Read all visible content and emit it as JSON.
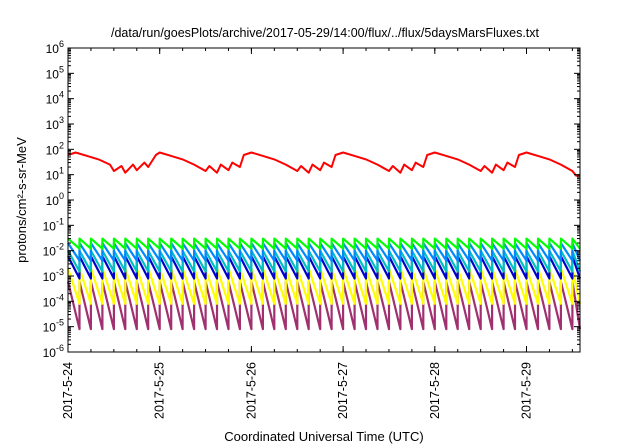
{
  "chart_data": {
    "type": "line",
    "title": "/data/run/goesPlots/archive/2017-05-29/14:00/flux/../flux/5daysMarsFluxes.txt",
    "xlabel": "Coordinated Universal Time (UTC)",
    "ylabel": "protons/cm²-s-sr-MeV",
    "y_scale": "log",
    "ylim": [
      1e-06,
      1000000.0
    ],
    "xlim": [
      "2017-05-24 00:00",
      "2017-05-29 14:00"
    ],
    "x_ticks": [
      "2017-5-24",
      "2017-5-25",
      "2017-5-26",
      "2017-5-27",
      "2017-5-28",
      "2017-5-29"
    ],
    "y_ticks": [
      {
        "base": "10",
        "exp": "-6"
      },
      {
        "base": "10",
        "exp": "-5"
      },
      {
        "base": "10",
        "exp": "-4"
      },
      {
        "base": "10",
        "exp": "-3"
      },
      {
        "base": "10",
        "exp": "-2"
      },
      {
        "base": "10",
        "exp": "-1"
      },
      {
        "base": "10",
        "exp": "0"
      },
      {
        "base": "10",
        "exp": "1"
      },
      {
        "base": "10",
        "exp": "2"
      },
      {
        "base": "10",
        "exp": "3"
      },
      {
        "base": "10",
        "exp": "4"
      },
      {
        "base": "10",
        "exp": "5"
      },
      {
        "base": "10",
        "exp": "6"
      }
    ],
    "grid": false,
    "legend": "none",
    "series": [
      {
        "color": "#ff0000",
        "x": [
          "2017-05-24 00:00",
          "2017-05-24 02:00",
          "2017-05-24 05:00",
          "2017-05-24 08:00",
          "2017-05-24 11:00",
          "2017-05-24 12:00",
          "2017-05-24 14:00",
          "2017-05-24 15:00",
          "2017-05-24 17:00",
          "2017-05-24 18:00",
          "2017-05-24 20:00",
          "2017-05-24 21:00",
          "2017-05-24 23:00",
          "2017-05-25 00:00",
          "2017-05-25 03:00",
          "2017-05-25 06:00",
          "2017-05-25 09:00",
          "2017-05-25 12:00",
          "2017-05-25 13:00",
          "2017-05-25 15:00",
          "2017-05-25 16:00",
          "2017-05-25 18:00",
          "2017-05-25 19:00",
          "2017-05-25 21:00",
          "2017-05-25 22:00",
          "2017-05-26 00:00",
          "2017-05-26 03:00",
          "2017-05-26 06:00",
          "2017-05-26 09:00",
          "2017-05-26 12:00",
          "2017-05-26 13:00",
          "2017-05-26 15:00",
          "2017-05-26 16:00",
          "2017-05-26 18:00",
          "2017-05-26 19:00",
          "2017-05-26 21:00",
          "2017-05-26 22:00",
          "2017-05-27 00:00",
          "2017-05-27 03:00",
          "2017-05-27 06:00",
          "2017-05-27 09:00",
          "2017-05-27 12:00",
          "2017-05-27 13:00",
          "2017-05-27 15:00",
          "2017-05-27 16:00",
          "2017-05-27 18:00",
          "2017-05-27 19:00",
          "2017-05-27 21:00",
          "2017-05-27 22:00",
          "2017-05-28 00:00",
          "2017-05-28 03:00",
          "2017-05-28 06:00",
          "2017-05-28 09:00",
          "2017-05-28 12:00",
          "2017-05-28 13:00",
          "2017-05-28 15:00",
          "2017-05-28 16:00",
          "2017-05-28 18:00",
          "2017-05-28 19:00",
          "2017-05-28 21:00",
          "2017-05-28 22:00",
          "2017-05-29 00:00",
          "2017-05-29 03:00",
          "2017-05-29 06:00",
          "2017-05-29 09:00",
          "2017-05-29 12:00",
          "2017-05-29 13:00",
          "2017-05-29 14:00"
        ],
        "values": [
          60,
          75,
          55,
          40,
          25,
          14,
          22,
          12,
          25,
          15,
          30,
          20,
          60,
          75,
          55,
          40,
          25,
          14,
          22,
          12,
          25,
          15,
          30,
          20,
          60,
          75,
          55,
          40,
          25,
          14,
          22,
          12,
          25,
          15,
          30,
          20,
          60,
          75,
          55,
          40,
          25,
          14,
          22,
          12,
          25,
          15,
          30,
          20,
          60,
          75,
          55,
          40,
          25,
          14,
          22,
          12,
          25,
          15,
          30,
          20,
          60,
          75,
          55,
          40,
          25,
          14,
          9,
          10
        ]
      },
      {
        "color": "#00ff00",
        "pattern": "sawtooth",
        "period_hours": 3,
        "high": 0.03,
        "low": 0.012
      },
      {
        "color": "#0088ff",
        "pattern": "sawtooth",
        "period_hours": 3,
        "high": 0.02,
        "low": 0.004
      },
      {
        "color": "#00c0c0",
        "pattern": "sawtooth",
        "period_hours": 3,
        "high": 0.01,
        "low": 0.0015
      },
      {
        "color": "#0000cc",
        "pattern": "sawtooth",
        "period_hours": 3,
        "high": 0.006,
        "low": 0.0008
      },
      {
        "color": "#ffff00",
        "pattern": "sawtooth",
        "period_hours": 3,
        "high": 0.002,
        "low": 8e-05
      },
      {
        "color": "#a03070",
        "pattern": "sawtooth",
        "period_hours": 3,
        "high": 0.0006,
        "low": 8e-06
      }
    ]
  }
}
